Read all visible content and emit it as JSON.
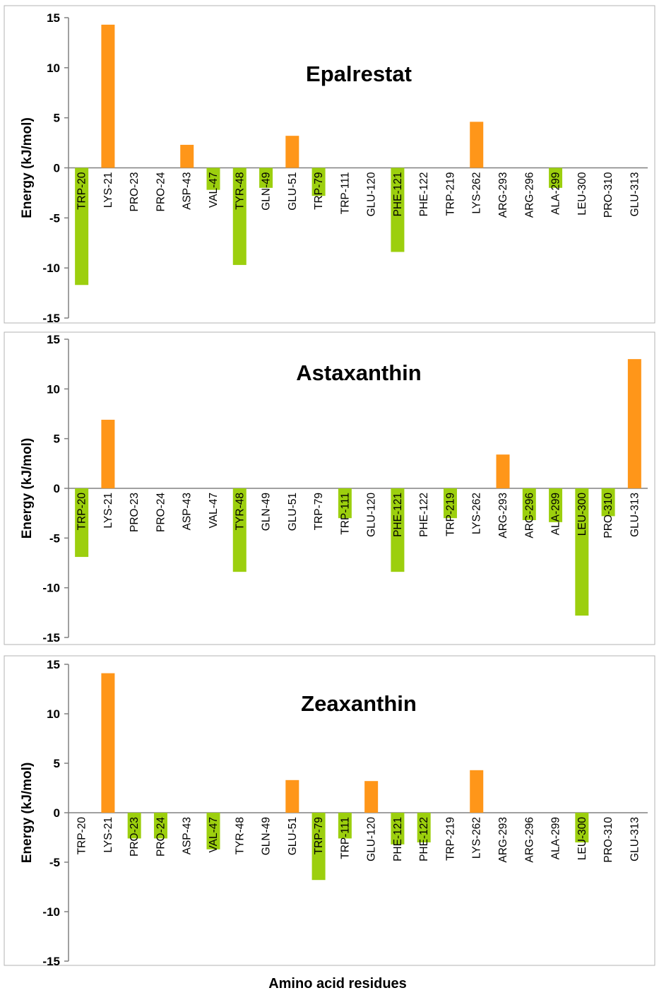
{
  "colors": {
    "positive": "#ff9619",
    "negative": "#9ccf0e",
    "axis": "#808080",
    "frame": "#b3b3b3"
  },
  "x_axis_label": "Amino acid residues",
  "chart_data": [
    {
      "type": "bar",
      "title": "Epalrestat",
      "ylabel": "Energy (kJ/mol)",
      "ylim": [
        -15,
        15
      ],
      "yticks": [
        "15",
        "10",
        "5",
        "0",
        "-5",
        "-10",
        "-15"
      ],
      "categories": [
        "TRP-20",
        "LYS-21",
        "PRO-23",
        "PRO-24",
        "ASP-43",
        "VAL-47",
        "TYR-48",
        "GLN-49",
        "GLU-51",
        "TRP-79",
        "TRP-111",
        "GLU-120",
        "PHE-121",
        "PHE-122",
        "TRP-219",
        "LYS-262",
        "ARG-293",
        "ARG-296",
        "ALA-299",
        "LEU-300",
        "PRO-310",
        "GLU-313"
      ],
      "values": [
        -11.7,
        14.3,
        0,
        0,
        2.3,
        -2.2,
        -9.7,
        -2.0,
        3.2,
        -2.8,
        0,
        0,
        -8.4,
        0,
        0,
        4.6,
        0,
        0,
        -2.0,
        0,
        0,
        0
      ]
    },
    {
      "type": "bar",
      "title": "Astaxanthin",
      "ylabel": "Energy (kJ/mol)",
      "ylim": [
        -15,
        15
      ],
      "yticks": [
        "15",
        "10",
        "5",
        "0",
        "-5",
        "-10",
        "-15"
      ],
      "categories": [
        "TRP-20",
        "LYS-21",
        "PRO-23",
        "PRO-24",
        "ASP-43",
        "VAL-47",
        "TYR-48",
        "GLN-49",
        "GLU-51",
        "TRP-79",
        "TRP-111",
        "GLU-120",
        "PHE-121",
        "PHE-122",
        "TRP-219",
        "LYS-262",
        "ARG-293",
        "ARG-296",
        "ALA-299",
        "LEU-300",
        "PRO-310",
        "GLU-313"
      ],
      "values": [
        -6.9,
        6.9,
        0,
        0,
        0,
        0,
        -8.4,
        0,
        0,
        0,
        -3.0,
        0,
        -8.4,
        0,
        -3.0,
        0,
        3.4,
        -3.2,
        -3.4,
        -12.8,
        -2.8,
        13.0
      ]
    },
    {
      "type": "bar",
      "title": "Zeaxanthin",
      "ylabel": "Energy (kJ/mol)",
      "ylim": [
        -15,
        15
      ],
      "yticks": [
        "15",
        "10",
        "5",
        "0",
        "-5",
        "-10",
        "-15"
      ],
      "categories": [
        "TRP-20",
        "LYS-21",
        "PRO-23",
        "PRO-24",
        "ASP-43",
        "VAL-47",
        "TYR-48",
        "GLN-49",
        "GLU-51",
        "TRP-79",
        "TRP-111",
        "GLU-120",
        "PHE-121",
        "PHE-122",
        "TRP-219",
        "LYS-262",
        "ARG-293",
        "ARG-296",
        "ALA-299",
        "LEU-300",
        "PRO-310",
        "GLU-313"
      ],
      "values": [
        0,
        14.1,
        -2.6,
        -2.6,
        0,
        -3.7,
        0,
        0,
        3.3,
        -6.8,
        -2.6,
        3.2,
        -3.2,
        -3.0,
        0,
        4.3,
        0,
        0,
        0,
        -3.0,
        0,
        0
      ]
    }
  ]
}
